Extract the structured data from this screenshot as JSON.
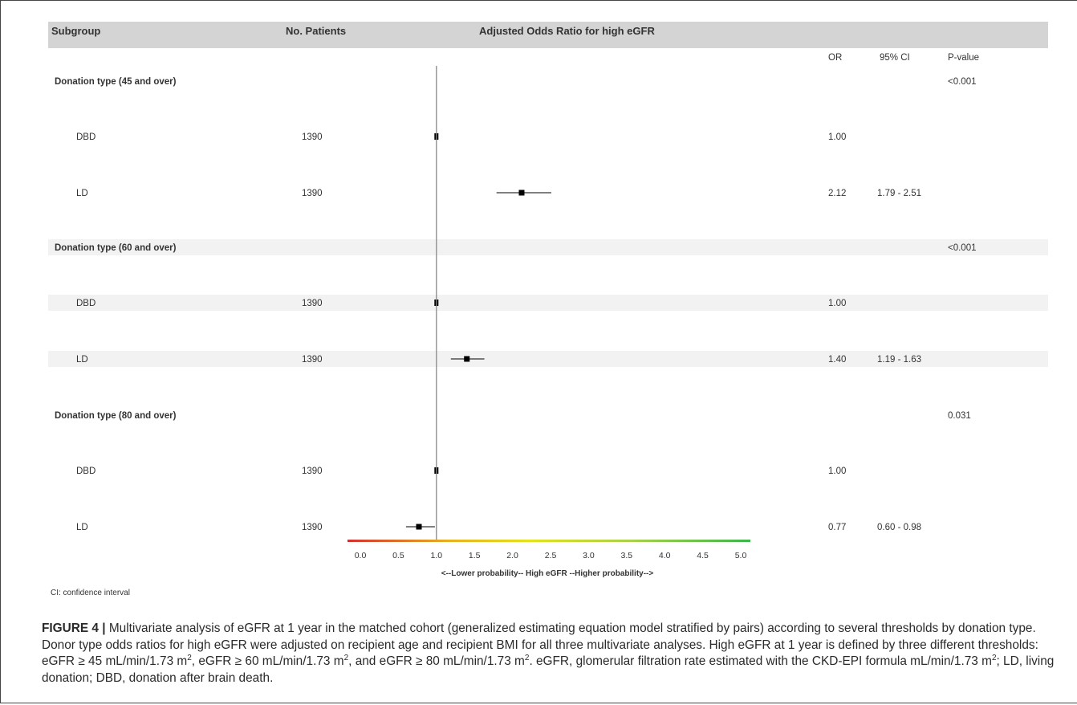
{
  "chart_data": {
    "type": "forest",
    "headers": {
      "subgroup": "Subgroup",
      "patients": "No. Patients",
      "plot_title": "Adjusted Odds Ratio for high eGFR",
      "or": "OR",
      "ci": "95% CI",
      "pvalue": "P-value"
    },
    "groups": [
      {
        "label": "Donation type (45 and over)",
        "pvalue": "<0.001",
        "rows": [
          {
            "label": "DBD",
            "n": "1390",
            "or": 1.0,
            "ci_low": null,
            "ci_high": null,
            "or_text": "1.00",
            "ci_text": ""
          },
          {
            "label": "LD",
            "n": "1390",
            "or": 2.12,
            "ci_low": 1.79,
            "ci_high": 2.51,
            "or_text": "2.12",
            "ci_text": "1.79 - 2.51"
          }
        ]
      },
      {
        "label": "Donation type (60 and over)",
        "pvalue": "<0.001",
        "rows": [
          {
            "label": "DBD",
            "n": "1390",
            "or": 1.0,
            "ci_low": null,
            "ci_high": null,
            "or_text": "1.00",
            "ci_text": ""
          },
          {
            "label": "LD",
            "n": "1390",
            "or": 1.4,
            "ci_low": 1.19,
            "ci_high": 1.63,
            "or_text": "1.40",
            "ci_text": "1.19 - 1.63"
          }
        ]
      },
      {
        "label": "Donation type (80 and over)",
        "pvalue": "0.031",
        "rows": [
          {
            "label": "DBD",
            "n": "1390",
            "or": 1.0,
            "ci_low": null,
            "ci_high": null,
            "or_text": "1.00",
            "ci_text": ""
          },
          {
            "label": "LD",
            "n": "1390",
            "or": 0.77,
            "ci_low": 0.6,
            "ci_high": 0.98,
            "or_text": "0.77",
            "ci_text": "0.60 - 0.98"
          }
        ]
      }
    ],
    "x_axis": {
      "range": [
        0,
        5
      ],
      "reference": 1.0,
      "ticks": [
        "0.0",
        "0.5",
        "1.0",
        "1.5",
        "2.0",
        "2.5",
        "3.0",
        "3.5",
        "4.0",
        "4.5",
        "5.0"
      ],
      "label": "<--Lower probability--  High eGFR  --Higher probability-->",
      "gradient": [
        "#d32f2f",
        "#e8b020",
        "#e4e21c",
        "#a9d24a",
        "#3cb54a"
      ]
    },
    "footnote": "CI: confidence interval",
    "colors": {
      "header_band": "#d4d4d4",
      "alt_band": "#f2f2f2",
      "marker": "#000000",
      "reference_line": "#888888"
    }
  },
  "caption": {
    "label": "FIGURE 4 |",
    "text_1": " Multivariate analysis of eGFR at 1 year in the matched cohort (generalized estimating equation model stratified by pairs) according to several thresholds by donation type. Donor type odds ratios for high eGFR were adjusted on recipient age and recipient BMI for all three multivariate analyses. High eGFR at 1 year is defined by three different thresholds: eGFR ≥ 45 mL/min/1.73 m",
    "text_2": ", eGFR ≥ 60 mL/min/1.73 m",
    "text_3": ", and eGFR ≥ 80 mL/min/1.73 m",
    "text_4": ". eGFR, glomerular filtration rate estimated with the CKD-EPI formula mL/min/1.73 m",
    "text_5": "; LD, living donation; DBD, donation after brain death.",
    "sup": "2"
  }
}
